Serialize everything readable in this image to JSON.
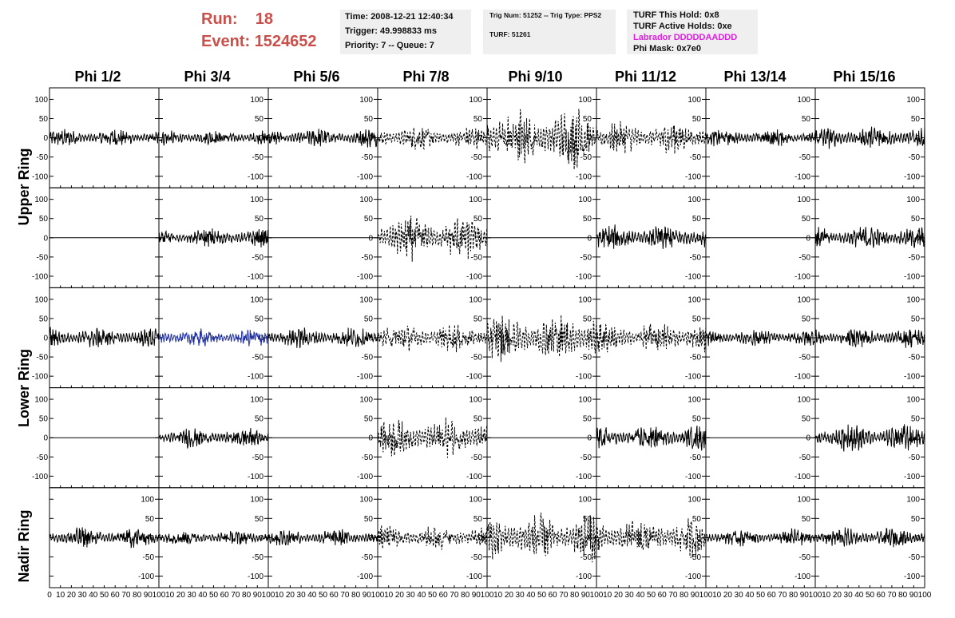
{
  "run": {
    "run_label": "Run:",
    "run_value": "18",
    "event_label": "Event:",
    "event_value": "1524652"
  },
  "info_time": {
    "time": "Time: 2008-12-21 12:40:34",
    "trigger": "Trigger: 49.998833 ms",
    "priority": "Priority: 7 -- Queue: 7"
  },
  "info_trig": {
    "line1": "Trig Num: 51252 -- Trig Type: PPS2",
    "line2": "TURF: 51261"
  },
  "info_turf": {
    "hold": "TURF This Hold: 0x8",
    "active": "TURF Active Holds: 0xe",
    "labrador": "Labrador DDDDDAADDD",
    "mask": "Phi Mask: 0x7e0"
  },
  "phi_labels": [
    "Phi 1/2",
    "Phi 3/4",
    "Phi 5/6",
    "Phi 7/8",
    "Phi 9/10",
    "Phi 11/12",
    "Phi 13/14",
    "Phi 15/16"
  ],
  "ring_labels": [
    "Upper Ring",
    "Lower Ring",
    "Nadir Ring"
  ],
  "colors": {
    "title_red": "#c9504a",
    "magenta": "#e020e0",
    "trace_blue": "#2030a0",
    "panel_bg": "#efefef"
  },
  "chart_data": {
    "type": "line",
    "rows": 5,
    "cols": 8,
    "xlim": [
      0,
      100
    ],
    "ylim": [
      -130,
      130
    ],
    "yticks": [
      -100,
      -50,
      0,
      50,
      100
    ],
    "xtick_labels": [
      "0",
      "10",
      "20",
      "30",
      "40",
      "50",
      "60",
      "70",
      "80",
      "90",
      "100"
    ],
    "panels": [
      [
        {
          "a": 14,
          "s": "solid"
        },
        {
          "a": 12,
          "s": "solid"
        },
        {
          "a": 15,
          "s": "solid"
        },
        {
          "a": 18,
          "s": "dashed"
        },
        {
          "a": 50,
          "s": "dashed"
        },
        {
          "a": 25,
          "s": "dashed"
        },
        {
          "a": 14,
          "s": "solid"
        },
        {
          "a": 18,
          "s": "solid"
        }
      ],
      [
        {
          "a": 0,
          "s": "flat"
        },
        {
          "a": 15,
          "s": "solid"
        },
        {
          "a": 0,
          "s": "flat"
        },
        {
          "a": 35,
          "s": "dashed"
        },
        {
          "a": 0,
          "s": "flat"
        },
        {
          "a": 20,
          "s": "solid"
        },
        {
          "a": 0,
          "s": "flat"
        },
        {
          "a": 18,
          "s": "solid"
        }
      ],
      [
        {
          "a": 17,
          "s": "solid"
        },
        {
          "a": 14,
          "s": "blue"
        },
        {
          "a": 16,
          "s": "solid"
        },
        {
          "a": 22,
          "s": "dashed"
        },
        {
          "a": 38,
          "s": "dashed"
        },
        {
          "a": 25,
          "s": "dashed"
        },
        {
          "a": 14,
          "s": "solid"
        },
        {
          "a": 16,
          "s": "solid"
        }
      ],
      [
        {
          "a": 0,
          "s": "flat"
        },
        {
          "a": 16,
          "s": "solid"
        },
        {
          "a": 0,
          "s": "flat"
        },
        {
          "a": 30,
          "s": "dashed"
        },
        {
          "a": 0,
          "s": "flat"
        },
        {
          "a": 20,
          "s": "solid"
        },
        {
          "a": 0,
          "s": "flat"
        },
        {
          "a": 22,
          "s": "solid"
        }
      ],
      [
        {
          "a": 16,
          "s": "solid"
        },
        {
          "a": 12,
          "s": "solid"
        },
        {
          "a": 14,
          "s": "solid"
        },
        {
          "a": 20,
          "s": "dashed"
        },
        {
          "a": 38,
          "s": "dashed"
        },
        {
          "a": 30,
          "s": "dashed"
        },
        {
          "a": 14,
          "s": "solid"
        },
        {
          "a": 16,
          "s": "solid"
        }
      ]
    ]
  }
}
